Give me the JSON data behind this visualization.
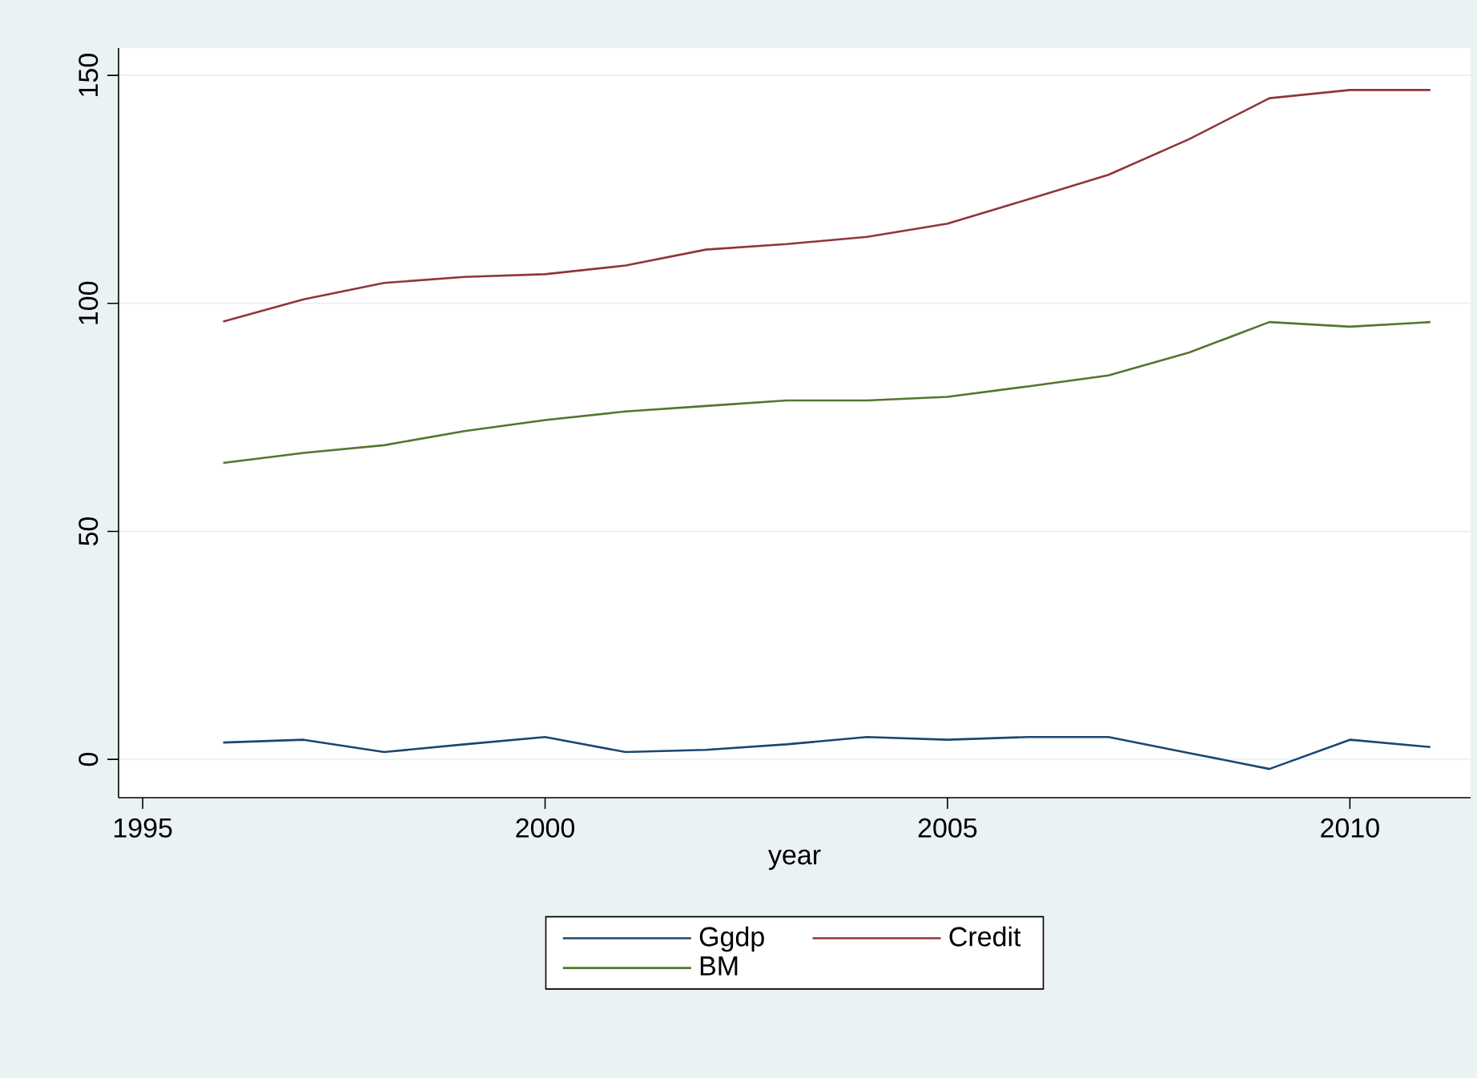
{
  "chart_data": {
    "type": "line",
    "xlabel": "year",
    "x": [
      1996,
      1997,
      1998,
      1999,
      2000,
      2001,
      2002,
      2003,
      2004,
      2005,
      2006,
      2007,
      2008,
      2009,
      2010,
      2011
    ],
    "series": [
      {
        "name": "Ggdp",
        "color": "#1a476f",
        "values": [
          3.7,
          4.3,
          1.6,
          3.3,
          4.9,
          1.6,
          2.1,
          3.3,
          4.9,
          4.3,
          4.9,
          4.9,
          1.4,
          -2.1,
          4.3,
          2.7
        ]
      },
      {
        "name": "Credit",
        "color": "#90353b",
        "values": [
          96,
          100.9,
          104.5,
          105.8,
          106.4,
          108.3,
          111.8,
          113,
          114.6,
          117.5,
          122.8,
          128.2,
          136,
          145,
          146.8,
          146.8
        ]
      },
      {
        "name": "BM",
        "color": "#55752f",
        "values": [
          65,
          67.2,
          68.9,
          72,
          74.4,
          76.3,
          77.5,
          78.7,
          78.7,
          79.5,
          81.8,
          84.2,
          89.2,
          95.9,
          94.9,
          95.9
        ]
      }
    ],
    "xlim": [
      1994.7,
      2011.5
    ],
    "ylim": [
      -8.4,
      156
    ],
    "xticks": [
      1995,
      2000,
      2005,
      2010
    ],
    "yticks": [
      0,
      50,
      100,
      150
    ],
    "grid": "y",
    "legend": "bottom",
    "marker": "none",
    "line_style": "solid"
  }
}
